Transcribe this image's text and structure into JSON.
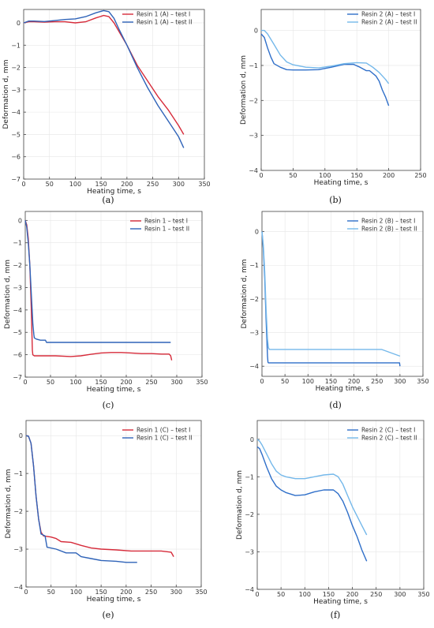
{
  "chart_data": [
    {
      "type": "line",
      "caption": "(a)",
      "xlabel": "Heating time, s",
      "ylabel": "Deformation d, mm",
      "xlim": [
        0,
        350
      ],
      "ylim": [
        -7,
        0.6
      ],
      "xticks": [
        0,
        50,
        100,
        150,
        200,
        250,
        300,
        350
      ],
      "yticks": [
        0,
        -1,
        -2,
        -3,
        -4,
        -5,
        -6,
        -7
      ],
      "grid": true,
      "legend": "top-right",
      "series": [
        {
          "name": "Resin 1 (A) – test I",
          "color": "#d62b3a",
          "x": [
            0,
            10,
            20,
            40,
            60,
            80,
            100,
            120,
            140,
            155,
            165,
            175,
            185,
            200,
            220,
            240,
            260,
            280,
            300,
            310
          ],
          "y": [
            0,
            0.05,
            0.05,
            0.03,
            0.05,
            0.05,
            0.0,
            0.05,
            0.22,
            0.33,
            0.28,
            0.0,
            -0.4,
            -1.0,
            -1.9,
            -2.6,
            -3.3,
            -3.9,
            -4.6,
            -5.0
          ]
        },
        {
          "name": "Resin 1 (A) – test II",
          "color": "#2f63b8",
          "x": [
            0,
            10,
            20,
            40,
            60,
            80,
            100,
            120,
            140,
            155,
            165,
            175,
            185,
            200,
            220,
            240,
            260,
            280,
            300,
            310
          ],
          "y": [
            0,
            0.08,
            0.08,
            0.06,
            0.1,
            0.15,
            0.18,
            0.28,
            0.45,
            0.55,
            0.5,
            0.2,
            -0.3,
            -1.0,
            -2.0,
            -2.9,
            -3.7,
            -4.4,
            -5.1,
            -5.6
          ]
        }
      ]
    },
    {
      "type": "line",
      "caption": "(b)",
      "xlabel": "Heating time, s",
      "ylabel": "Deformation d, mm",
      "xlim": [
        0,
        250
      ],
      "ylim": [
        -4,
        0.6
      ],
      "xticks": [
        0,
        50,
        100,
        150,
        200,
        250
      ],
      "yticks": [
        0,
        -1,
        -2,
        -3,
        -4
      ],
      "grid": true,
      "legend": "top-right",
      "series": [
        {
          "name": "Resin 2 (A) – test I",
          "color": "#2f6fc9",
          "x": [
            0,
            5,
            10,
            15,
            20,
            30,
            40,
            50,
            70,
            90,
            110,
            130,
            145,
            155,
            165,
            170,
            180,
            185,
            190,
            195,
            200
          ],
          "y": [
            -0.1,
            -0.2,
            -0.5,
            -0.75,
            -0.95,
            -1.05,
            -1.12,
            -1.13,
            -1.13,
            -1.12,
            -1.05,
            -0.97,
            -0.97,
            -1.05,
            -1.15,
            -1.15,
            -1.3,
            -1.45,
            -1.7,
            -1.9,
            -2.15
          ]
        },
        {
          "name": "Resin 2 (A) – test II",
          "color": "#74b8ea",
          "x": [
            0,
            5,
            10,
            20,
            30,
            40,
            50,
            70,
            90,
            110,
            130,
            150,
            165,
            175,
            185,
            195,
            200
          ],
          "y": [
            0,
            0,
            -0.1,
            -0.4,
            -0.7,
            -0.9,
            -0.98,
            -1.05,
            -1.07,
            -1.02,
            -0.95,
            -0.92,
            -0.93,
            -1.05,
            -1.2,
            -1.4,
            -1.52
          ]
        }
      ]
    },
    {
      "type": "line",
      "caption": "(c)",
      "xlabel": "Heating time, s",
      "ylabel": "Deformation d, mm",
      "xlim": [
        0,
        350
      ],
      "ylim": [
        -7,
        0.4
      ],
      "xticks": [
        0,
        50,
        100,
        150,
        200,
        250,
        300,
        350
      ],
      "yticks": [
        0,
        -1,
        -2,
        -3,
        -4,
        -5,
        -6,
        -7
      ],
      "grid": true,
      "legend": "top-right",
      "series": [
        {
          "name": "Resin 1 – test I",
          "color": "#d62b3a",
          "x": [
            0,
            3,
            6,
            9,
            12,
            14,
            15,
            16,
            18,
            30,
            60,
            90,
            110,
            130,
            150,
            170,
            190,
            210,
            230,
            250,
            270,
            285,
            288,
            290
          ],
          "y": [
            0,
            -0.2,
            -0.8,
            -2.0,
            -4.0,
            -5.8,
            -6.0,
            -6.02,
            -6.05,
            -6.05,
            -6.05,
            -6.08,
            -6.05,
            -5.98,
            -5.92,
            -5.9,
            -5.9,
            -5.92,
            -5.95,
            -5.95,
            -5.97,
            -5.97,
            -6.05,
            -6.25
          ]
        },
        {
          "name": "Resin 1 – test II",
          "color": "#2f63b8",
          "x": [
            0,
            3,
            6,
            9,
            12,
            15,
            17,
            18,
            22,
            30,
            40,
            42,
            60,
            100,
            150,
            200,
            250,
            288
          ],
          "y": [
            0,
            -0.3,
            -1.0,
            -2.0,
            -3.3,
            -4.6,
            -5.1,
            -5.25,
            -5.3,
            -5.35,
            -5.35,
            -5.45,
            -5.45,
            -5.45,
            -5.45,
            -5.45,
            -5.45,
            -5.45
          ]
        }
      ]
    },
    {
      "type": "line",
      "caption": "(d)",
      "xlabel": "Heating time, s",
      "ylabel": "Deformation d, mm",
      "xlim": [
        0,
        350
      ],
      "ylim": [
        -4.3,
        0.6
      ],
      "xticks": [
        0,
        50,
        100,
        150,
        200,
        250,
        300,
        350
      ],
      "yticks": [
        0,
        -1,
        -2,
        -3,
        -4
      ],
      "grid": true,
      "legend": "top-right",
      "series": [
        {
          "name": "Resin 2 (B) – test I",
          "color": "#2f6fc9",
          "x": [
            0,
            3,
            6,
            9,
            12,
            13,
            14,
            50,
            100,
            150,
            200,
            250,
            299,
            300
          ],
          "y": [
            0,
            -0.5,
            -1.4,
            -2.6,
            -3.7,
            -3.88,
            -3.9,
            -3.9,
            -3.9,
            -3.9,
            -3.9,
            -3.9,
            -3.9,
            -4.0
          ]
        },
        {
          "name": "Resin 2 (B) – test II",
          "color": "#74b8ea",
          "x": [
            0,
            3,
            6,
            9,
            12,
            14,
            16,
            50,
            100,
            150,
            200,
            260,
            300
          ],
          "y": [
            0,
            -0.4,
            -1.2,
            -2.3,
            -3.2,
            -3.45,
            -3.5,
            -3.5,
            -3.5,
            -3.5,
            -3.5,
            -3.5,
            -3.7
          ]
        }
      ]
    },
    {
      "type": "line",
      "caption": "(e)",
      "xlabel": "Heating time, s",
      "ylabel": "Deformation d, mm",
      "xlim": [
        0,
        350
      ],
      "ylim": [
        -4,
        0.4
      ],
      "xticks": [
        0,
        50,
        100,
        150,
        200,
        250,
        300,
        350
      ],
      "yticks": [
        0,
        -1,
        -2,
        -3,
        -4
      ],
      "grid": true,
      "legend": "top-right",
      "series": [
        {
          "name": "Resin 1 (C) – test I",
          "color": "#d62b3a",
          "x": [
            0,
            5,
            10,
            15,
            20,
            25,
            30,
            35,
            50,
            60,
            70,
            90,
            110,
            130,
            150,
            180,
            210,
            240,
            270,
            290,
            295
          ],
          "y": [
            0,
            -0.02,
            -0.2,
            -0.8,
            -1.6,
            -2.2,
            -2.55,
            -2.65,
            -2.68,
            -2.72,
            -2.8,
            -2.82,
            -2.9,
            -2.97,
            -3.0,
            -3.02,
            -3.05,
            -3.05,
            -3.05,
            -3.08,
            -3.2
          ]
        },
        {
          "name": "Resin 1 (C) – test II",
          "color": "#2f63b8",
          "x": [
            0,
            5,
            10,
            15,
            20,
            25,
            30,
            38,
            42,
            60,
            80,
            100,
            110,
            130,
            150,
            180,
            200,
            222
          ],
          "y": [
            0,
            -0.02,
            -0.2,
            -0.8,
            -1.6,
            -2.2,
            -2.6,
            -2.65,
            -2.95,
            -3.0,
            -3.1,
            -3.1,
            -3.2,
            -3.25,
            -3.3,
            -3.32,
            -3.35,
            -3.35
          ]
        }
      ]
    },
    {
      "type": "line",
      "caption": "(f)",
      "xlabel": "Heating time, s",
      "ylabel": "Deformation d, mm",
      "xlim": [
        0,
        350
      ],
      "ylim": [
        -4,
        0.5
      ],
      "xticks": [
        0,
        50,
        100,
        150,
        200,
        250,
        300,
        350
      ],
      "yticks": [
        0,
        -1,
        -2,
        -3,
        -4
      ],
      "grid": true,
      "legend": "top-right",
      "series": [
        {
          "name": "Resin 2 (C) – test I",
          "color": "#2f6fc9",
          "x": [
            0,
            5,
            10,
            20,
            30,
            40,
            50,
            60,
            80,
            100,
            120,
            140,
            160,
            170,
            180,
            190,
            200,
            210,
            220,
            230
          ],
          "y": [
            -0.2,
            -0.25,
            -0.4,
            -0.75,
            -1.05,
            -1.25,
            -1.35,
            -1.42,
            -1.5,
            -1.48,
            -1.4,
            -1.35,
            -1.35,
            -1.45,
            -1.65,
            -1.95,
            -2.3,
            -2.6,
            -2.95,
            -3.25
          ]
        },
        {
          "name": "Resin 2 (C) – test II",
          "color": "#74b8ea",
          "x": [
            0,
            5,
            10,
            20,
            30,
            40,
            50,
            60,
            80,
            100,
            120,
            140,
            160,
            170,
            180,
            190,
            200,
            210,
            220,
            230
          ],
          "y": [
            0,
            -0.05,
            -0.15,
            -0.4,
            -0.65,
            -0.85,
            -0.95,
            -1.0,
            -1.05,
            -1.05,
            -1.0,
            -0.95,
            -0.93,
            -1.0,
            -1.2,
            -1.5,
            -1.8,
            -2.05,
            -2.3,
            -2.55
          ]
        }
      ]
    }
  ]
}
